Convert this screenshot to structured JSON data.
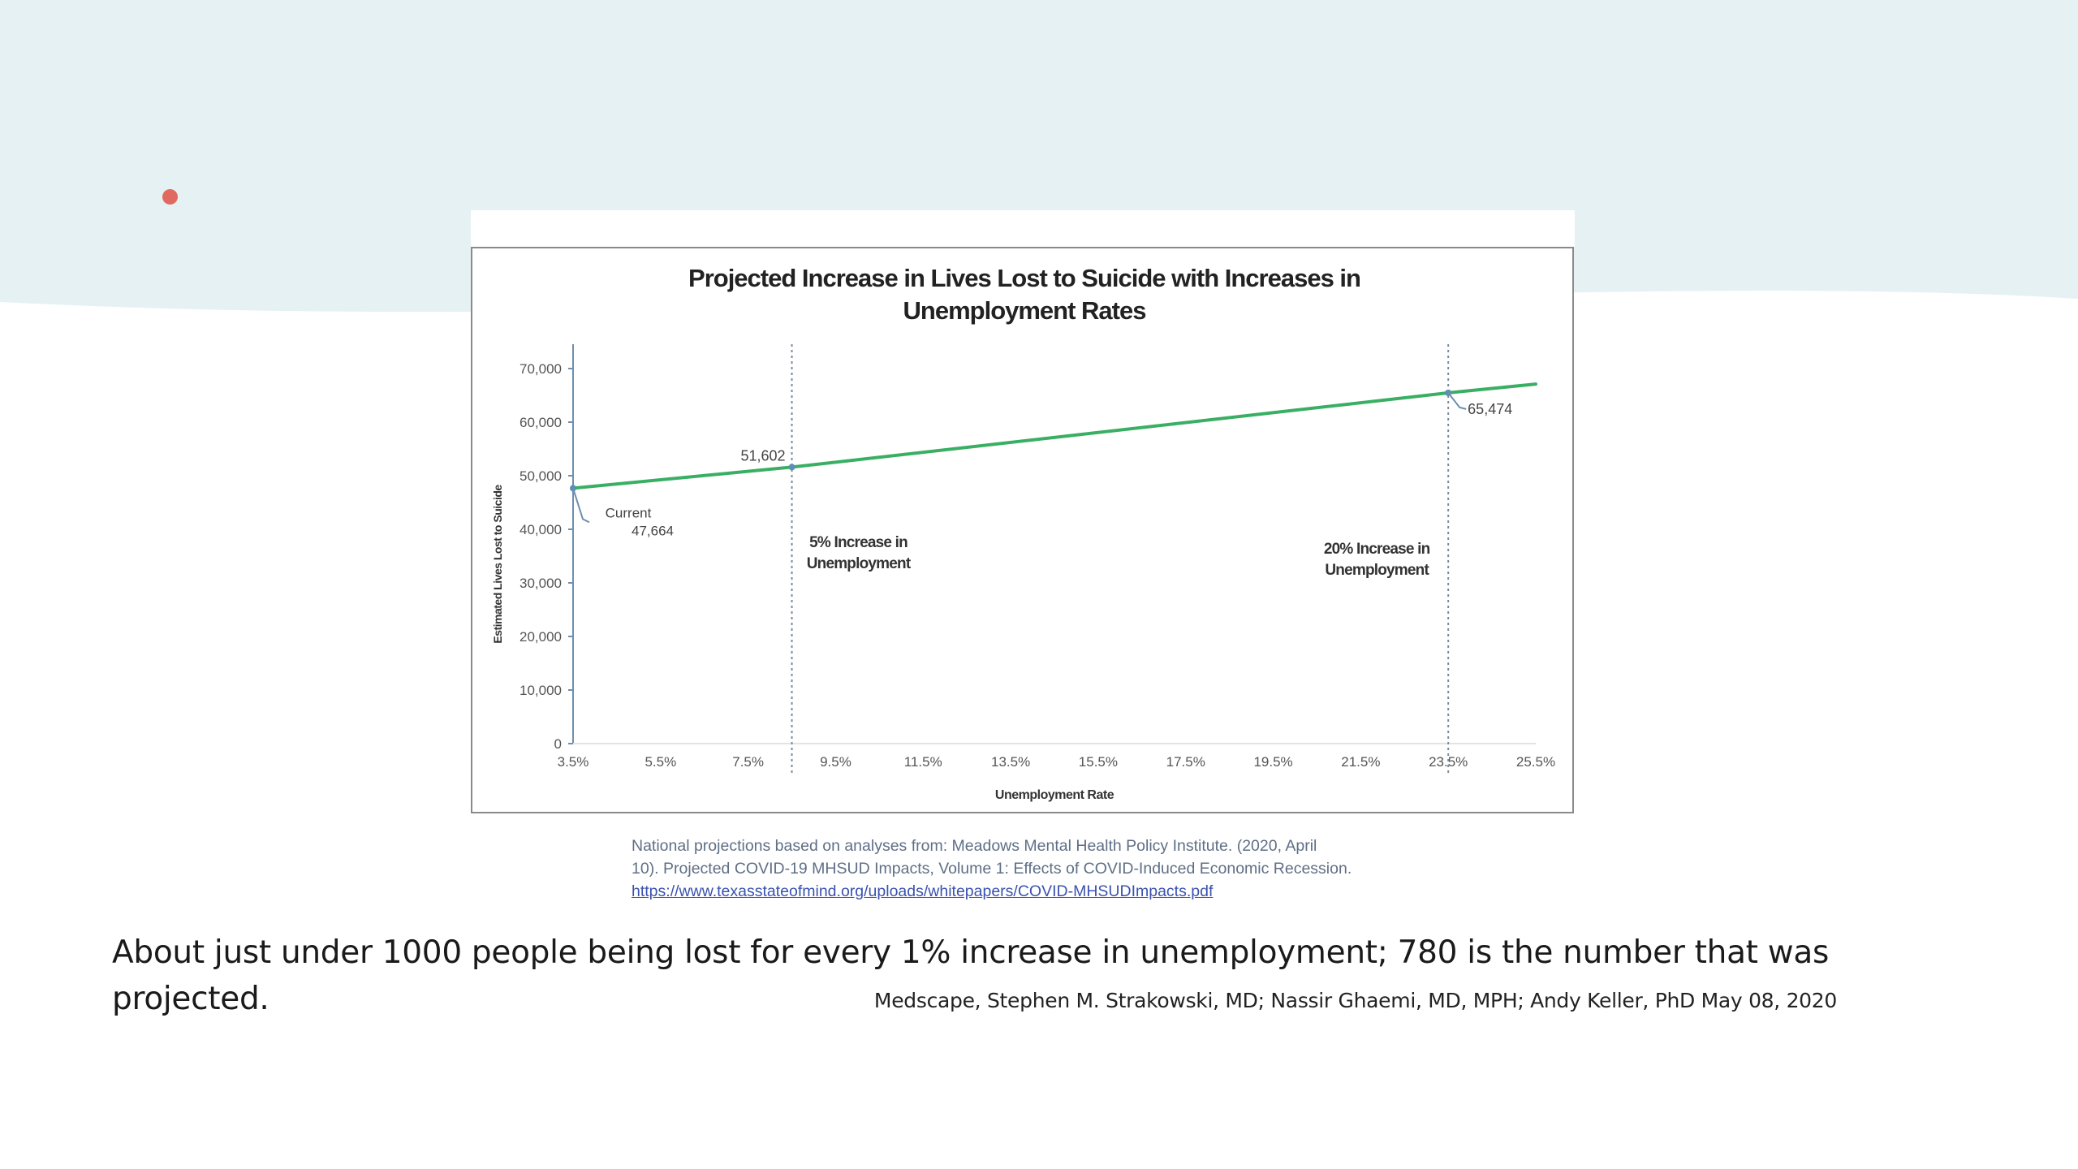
{
  "theme": {
    "top_band_color": "#e6f1f3",
    "bullet_color": "#e06a5f",
    "line_color": "#3aaf64",
    "marker_color": "#5b8fb5"
  },
  "chart_data": {
    "type": "line",
    "title_lines": [
      "Projected Increase in Lives Lost to Suicide with Increases in",
      "Unemployment Rates"
    ],
    "xlabel": "Unemployment Rate",
    "ylabel": "Estimated Lives Lost to Suicide",
    "x_tick_labels": [
      "3.5%",
      "5.5%",
      "7.5%",
      "9.5%",
      "11.5%",
      "13.5%",
      "15.5%",
      "17.5%",
      "19.5%",
      "21.5%",
      "23.5%",
      "25.5%"
    ],
    "x_ticks": [
      3.5,
      5.5,
      7.5,
      9.5,
      11.5,
      13.5,
      15.5,
      17.5,
      19.5,
      21.5,
      23.5,
      25.5
    ],
    "y_tick_labels": [
      "0",
      "10,000",
      "20,000",
      "30,000",
      "40,000",
      "50,000",
      "60,000",
      "70,000"
    ],
    "y_ticks": [
      0,
      10000,
      20000,
      30000,
      40000,
      50000,
      60000,
      70000
    ],
    "xlim": [
      3.5,
      25.5
    ],
    "ylim": [
      0,
      70000
    ],
    "grid": false,
    "series": [
      {
        "x": [
          3.5,
          8.5,
          23.5,
          25.5
        ],
        "values": [
          47664,
          51602,
          65474,
          67100
        ]
      }
    ],
    "annotations": {
      "current_label": "Current",
      "current_value": "47,664",
      "mid_value": "51,602",
      "end_value": "65,474",
      "mid_note_lines": [
        "5% Increase in",
        "Unemployment"
      ],
      "end_note_lines": [
        "20% Increase in",
        "Unemployment"
      ]
    },
    "reference_lines_x": [
      8.5,
      23.5
    ]
  },
  "source": {
    "line1": "National projections based on analyses from: Meadows Mental Health Policy Institute. (2020, April",
    "line2": "10). Projected COVID-19 MHSUD Impacts, Volume 1: Effects of COVID-Induced Economic Recession.",
    "link": "https://www.texasstateofmind.org/uploads/whitepapers/COVID-MHSUDImpacts.pdf"
  },
  "caption": "About just under 1000 people being lost for every 1% increase in unemployment; 780 is the number that was projected.",
  "citation": "Medscape, Stephen M. Strakowski, MD; Nassir Ghaemi, MD, MPH; Andy Keller, PhD May 08, 2020"
}
